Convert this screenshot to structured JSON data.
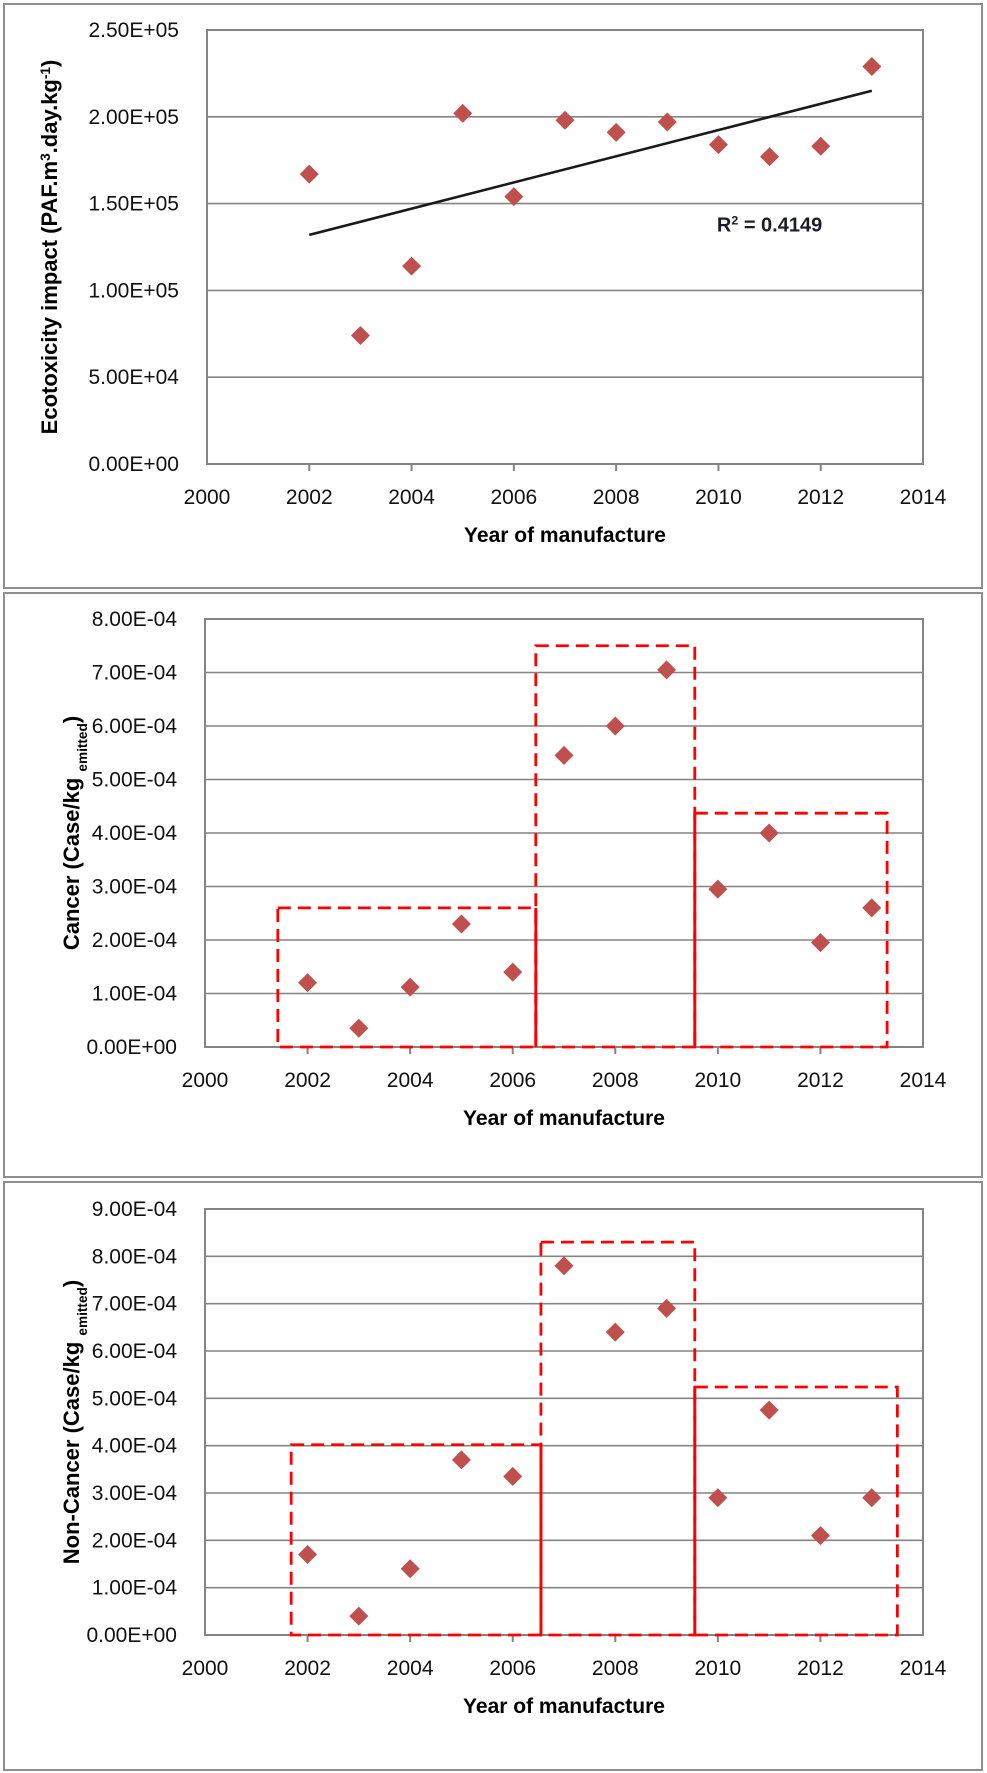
{
  "figure": {
    "background": "#ffffff",
    "panel_border_color": "#8f8f8f"
  },
  "colors": {
    "marker": "#c0504d",
    "gridline": "#848484",
    "plot_border": "#848484",
    "box_red": "#ff0000",
    "trendline": "#1a1a1a",
    "text": "#000000"
  },
  "chart_data": [
    {
      "type": "scatter",
      "name": "ecotoxicity",
      "xlabel": "Year of manufacture",
      "ylabel": "Ecotoxicity impact (PAF.m3.day.kg-1)",
      "ylabel_parts": [
        {
          "t": "Ecotoxicity impact (PAF.m"
        },
        {
          "t": "3",
          "shift": "sup"
        },
        {
          "t": ".day.kg"
        },
        {
          "t": "-1",
          "shift": "sup"
        },
        {
          "t": ")"
        }
      ],
      "xlim": [
        2000,
        2014
      ],
      "ylim": [
        0,
        250000
      ],
      "x_tick_labels": [
        "2000",
        "2002",
        "2004",
        "2006",
        "2008",
        "2010",
        "2012",
        "2014"
      ],
      "x_tick_marks": [
        2002,
        2004,
        2006,
        2008,
        2010,
        2012
      ],
      "y_tick_labels": [
        "0.00E+00",
        "5.00E+04",
        "1.00E+05",
        "1.50E+05",
        "2.00E+05",
        "2.50E+05"
      ],
      "x": [
        2002,
        2003,
        2004,
        2005,
        2006,
        2007,
        2008,
        2009,
        2010,
        2011,
        2012,
        2013
      ],
      "y": [
        167000,
        74000,
        114000,
        202000,
        154000,
        198000,
        191000,
        197000,
        184000,
        177000,
        183000,
        229000
      ],
      "trendline": {
        "x1": 2002,
        "y1": 132000,
        "x2": 2013,
        "y2": 215000
      },
      "annotation": {
        "text": "R2 = 0.4149",
        "parts": [
          {
            "t": "R"
          },
          {
            "t": "2",
            "shift": "sup"
          },
          {
            "t": " = 0.4149"
          }
        ],
        "x": 2011,
        "y": 134000
      },
      "boxes": []
    },
    {
      "type": "scatter",
      "name": "cancer",
      "xlabel": "Year of manufacture",
      "ylabel": "Cancer (Case/kg emitted)",
      "ylabel_parts": [
        {
          "t": "Cancer (Case/kg "
        },
        {
          "t": "emitted",
          "shift": "sub"
        },
        {
          "t": ")"
        }
      ],
      "xlim": [
        2000,
        2014
      ],
      "ylim": [
        0,
        0.0008
      ],
      "x_tick_labels": [
        "2000",
        "2002",
        "2004",
        "2006",
        "2008",
        "2010",
        "2012",
        "2014"
      ],
      "x_tick_marks": [
        2002,
        2004,
        2006,
        2008,
        2010,
        2012
      ],
      "y_tick_labels": [
        "0.00E+00",
        "1.00E-04",
        "2.00E-04",
        "3.00E-04",
        "4.00E-04",
        "5.00E-04",
        "6.00E-04",
        "7.00E-04",
        "8.00E-04"
      ],
      "x": [
        2002,
        2003,
        2004,
        2005,
        2006,
        2007,
        2008,
        2009,
        2010,
        2011,
        2012,
        2013
      ],
      "y": [
        0.00012,
        3.5e-05,
        0.000112,
        0.00023,
        0.00014,
        0.000545,
        0.0006,
        0.000705,
        0.000295,
        0.0004,
        0.000195,
        0.00026
      ],
      "trendline": null,
      "annotation": null,
      "boxes": [
        {
          "x1": 2001.42,
          "x2": 2006.45,
          "y1": 0,
          "y2": 0.00026
        },
        {
          "x1": 2006.45,
          "x2": 2009.55,
          "y1": 0,
          "y2": 0.00075
        },
        {
          "x1": 2009.55,
          "x2": 2013.3,
          "y1": 0,
          "y2": 0.000437
        }
      ]
    },
    {
      "type": "scatter",
      "name": "non-cancer",
      "xlabel": "Year of manufacture",
      "ylabel": "Non-Cancer (Case/kg emitted)",
      "ylabel_parts": [
        {
          "t": "Non-Cancer (Case/kg "
        },
        {
          "t": "emitted",
          "shift": "sub"
        },
        {
          "t": ")"
        }
      ],
      "xlim": [
        2000,
        2014
      ],
      "ylim": [
        0,
        0.0009
      ],
      "x_tick_labels": [
        "2000",
        "2002",
        "2004",
        "2006",
        "2008",
        "2010",
        "2012",
        "2014"
      ],
      "x_tick_marks": [
        2002,
        2004,
        2006,
        2008,
        2010,
        2012
      ],
      "y_tick_labels": [
        "0.00E+00",
        "1.00E-04",
        "2.00E-04",
        "3.00E-04",
        "4.00E-04",
        "5.00E-04",
        "6.00E-04",
        "7.00E-04",
        "8.00E-04",
        "9.00E-04"
      ],
      "x": [
        2002,
        2003,
        2004,
        2005,
        2006,
        2007,
        2008,
        2009,
        2010,
        2011,
        2012,
        2013
      ],
      "y": [
        0.00017,
        4e-05,
        0.00014,
        0.00037,
        0.000335,
        0.00078,
        0.00064,
        0.00069,
        0.00029,
        0.000475,
        0.00021,
        0.00029
      ],
      "trendline": null,
      "annotation": null,
      "boxes": [
        {
          "x1": 2001.68,
          "x2": 2006.55,
          "y1": 0,
          "y2": 0.000402
        },
        {
          "x1": 2006.55,
          "x2": 2009.55,
          "y1": 0,
          "y2": 0.00083
        },
        {
          "x1": 2009.55,
          "x2": 2013.5,
          "y1": 0,
          "y2": 0.000524
        }
      ]
    }
  ]
}
